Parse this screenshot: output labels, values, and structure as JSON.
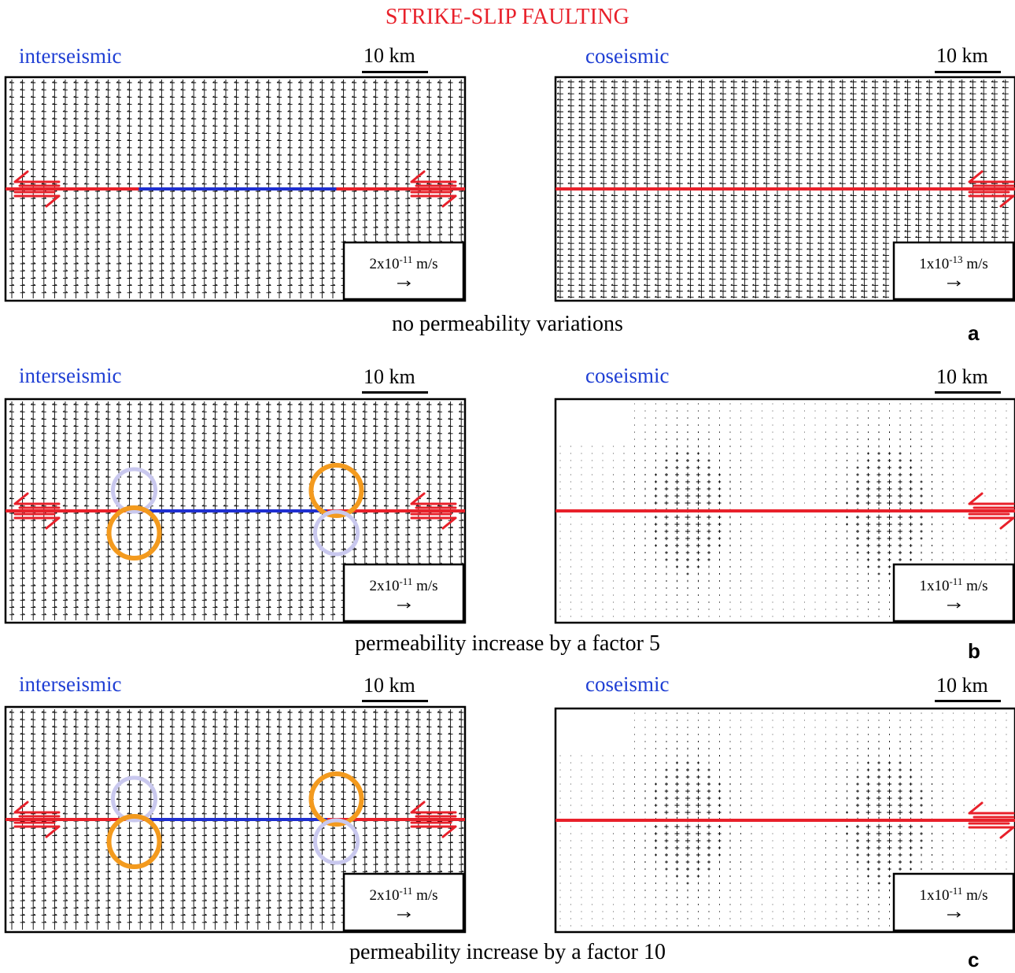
{
  "title": "STRIKE-SLIP FAULTING",
  "labels": {
    "interseismic": "interseismic",
    "coseismic": "coseismic",
    "scale": "10 km"
  },
  "rows": [
    {
      "id": "a",
      "letter": "a",
      "caption": "no permeability variations",
      "left": {
        "phase": "interseismic",
        "legend_base": "2x10",
        "legend_exp": "-11",
        "legend_unit": " m/s",
        "blue_segment": [
          0.29,
          0.72
        ],
        "circles": []
      },
      "right": {
        "phase": "coseismic",
        "legend_base": "1x10",
        "legend_exp": "-13",
        "legend_unit": " m/s",
        "hotspots": []
      }
    },
    {
      "id": "b",
      "letter": "b",
      "caption": "permeability increase by a factor 5",
      "left": {
        "phase": "interseismic",
        "legend_base": "2x10",
        "legend_exp": "-11",
        "legend_unit": " m/s",
        "blue_segment": [
          0.31,
          0.7
        ],
        "circles": [
          {
            "color": "lavender",
            "fx": 0.28,
            "fy": "above"
          },
          {
            "color": "orange",
            "fx": 0.28,
            "fy": "below"
          },
          {
            "color": "orange",
            "fx": 0.72,
            "fy": "above"
          },
          {
            "color": "lavender",
            "fx": 0.72,
            "fy": "below"
          }
        ]
      },
      "right": {
        "phase": "coseismic",
        "legend_base": "1x10",
        "legend_exp": "-11",
        "legend_unit": " m/s",
        "hotspots": [
          0.29,
          0.72
        ]
      }
    },
    {
      "id": "c",
      "letter": "c",
      "caption": "permeability increase by a factor 10",
      "left": {
        "phase": "interseismic",
        "legend_base": "2x10",
        "legend_exp": "-11",
        "legend_unit": " m/s",
        "blue_segment": [
          0.31,
          0.7
        ],
        "circles": [
          {
            "color": "lavender",
            "fx": 0.28,
            "fy": "above"
          },
          {
            "color": "orange",
            "fx": 0.28,
            "fy": "below"
          },
          {
            "color": "orange",
            "fx": 0.72,
            "fy": "above"
          },
          {
            "color": "lavender",
            "fx": 0.72,
            "fy": "below"
          }
        ]
      },
      "right": {
        "phase": "coseismic",
        "legend_base": "1x10",
        "legend_exp": "-11",
        "legend_unit": " m/s",
        "hotspots": [
          0.29,
          0.72
        ]
      }
    }
  ],
  "colors": {
    "title": "#e8202a",
    "phase": "#1f3fd4",
    "fault": "#e8202a",
    "fault_locked": "#1f2fd0",
    "orange": "#f39a1e",
    "lavender": "#c9c8ee",
    "vectors": "#000000"
  },
  "icons": {
    "fault_arrows": "double-half-arrow-icon",
    "legend_arrow": "right-arrow-icon"
  }
}
